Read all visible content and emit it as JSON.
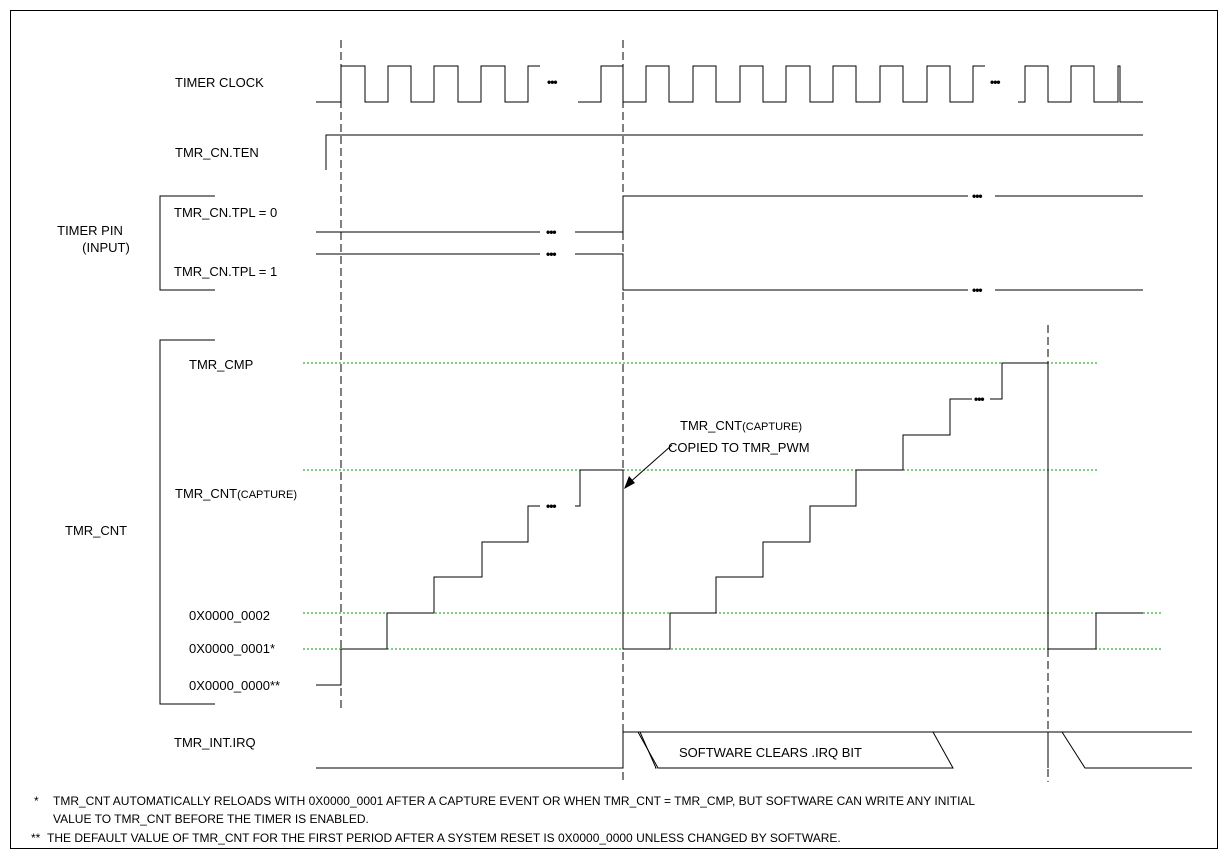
{
  "signals": {
    "timer_clock": "TIMER CLOCK",
    "tmr_cn_ten": "TMR_CN.TEN",
    "timer_pin": "TIMER PIN",
    "timer_pin_sub": "(INPUT)",
    "tpl0": "TMR_CN.TPL = 0",
    "tpl1": "TMR_CN.TPL = 1",
    "tmr_cnt": "TMR_CNT",
    "tmr_int_irq": "TMR_INT.IRQ"
  },
  "levels": {
    "tmr_cmp": "TMR_CMP",
    "capture_main": "TMR_CNT",
    "capture_sub": "(CAPTURE)",
    "v2": "0X0000_0002",
    "v1": "0X0000_0001*",
    "v0": "0X0000_0000**"
  },
  "annotations": {
    "capture_main": "TMR_CNT",
    "capture_sub": "(CAPTURE)",
    "copied": "COPIED TO TMR_PWM",
    "sw_clear": "SOFTWARE CLEARS .IRQ BIT",
    "ellipsis": "•••"
  },
  "footnotes": {
    "n1_mark": "*",
    "n1_line1": "TMR_CNT AUTOMATICALLY RELOADS WITH 0X0000_0001 AFTER A CAPTURE EVENT OR WHEN TMR_CNT = TMR_CMP, BUT SOFTWARE CAN WRITE ANY INITIAL",
    "n1_line2": "VALUE TO TMR_CNT BEFORE THE TIMER IS ENABLED.",
    "n2_mark": "**",
    "n2_line1": "THE  DEFAULT VALUE OF TMR_CNT FOR THE FIRST PERIOD AFTER A SYSTEM RESET IS 0X0000_0000 UNLESS CHANGED BY SOFTWARE."
  }
}
